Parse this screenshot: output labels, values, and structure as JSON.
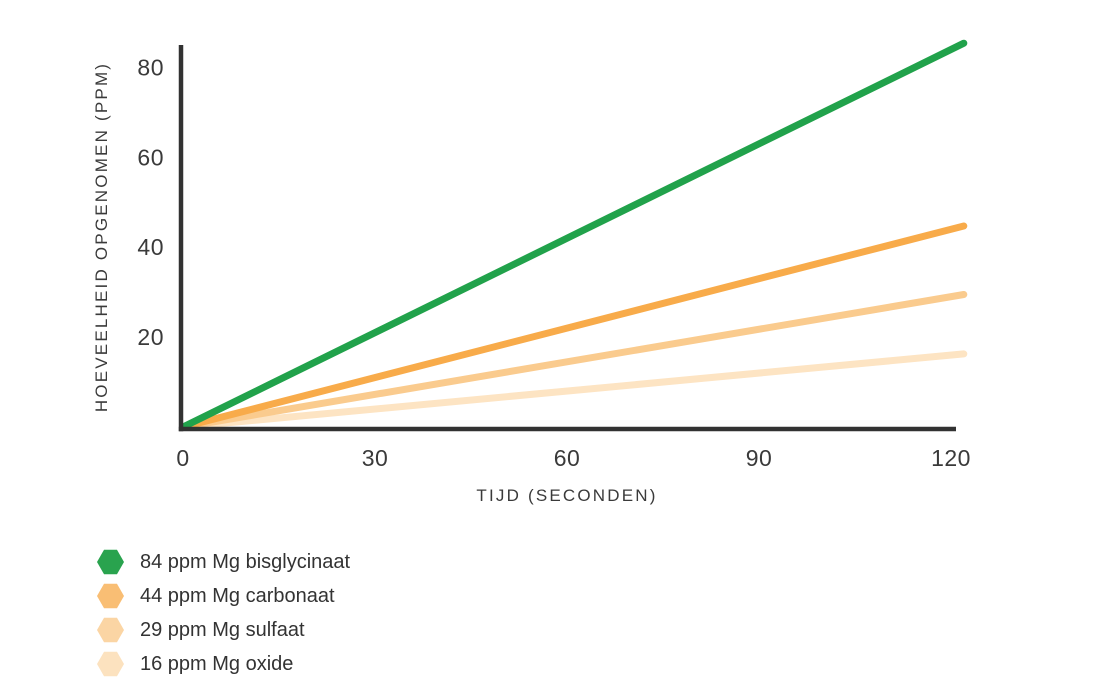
{
  "page": {
    "background": "#FFFFFF"
  },
  "chart_data": {
    "type": "line",
    "title": "",
    "xlabel": "TIJD (SECONDEN)",
    "ylabel": "HOEVEELHEID OPGENOMEN (PPM)",
    "x_unit": "seconden",
    "y_unit": "ppm",
    "xticks": [
      0,
      30,
      60,
      90,
      120
    ],
    "yticks": [
      20,
      40,
      60,
      80
    ],
    "xlim": [
      0,
      122
    ],
    "ylim": [
      0,
      85
    ],
    "grid": false,
    "axis_color": "#323232",
    "text_color": "#3A3A3A",
    "legend_position": "bottom-left",
    "marker_shape": "hexagon",
    "series": [
      {
        "name": "84 ppm Mg bisglycinaat",
        "x": [
          0,
          120
        ],
        "values": [
          0,
          84
        ],
        "line_color": "#21A24B",
        "marker_color": "#29A34E"
      },
      {
        "name": "44 ppm Mg carbonaat",
        "x": [
          0,
          120
        ],
        "values": [
          0,
          44
        ],
        "line_color": "#F8AB4A",
        "marker_color": "#F9BE74"
      },
      {
        "name": "29 ppm Mg sulfaat",
        "x": [
          0,
          120
        ],
        "values": [
          0,
          29
        ],
        "line_color": "#FACB8E",
        "marker_color": "#FBD5A4"
      },
      {
        "name": "16 ppm Mg oxide",
        "x": [
          0,
          120
        ],
        "values": [
          0,
          16
        ],
        "line_color": "#FDE4C3",
        "marker_color": "#FCE2BF"
      }
    ]
  }
}
